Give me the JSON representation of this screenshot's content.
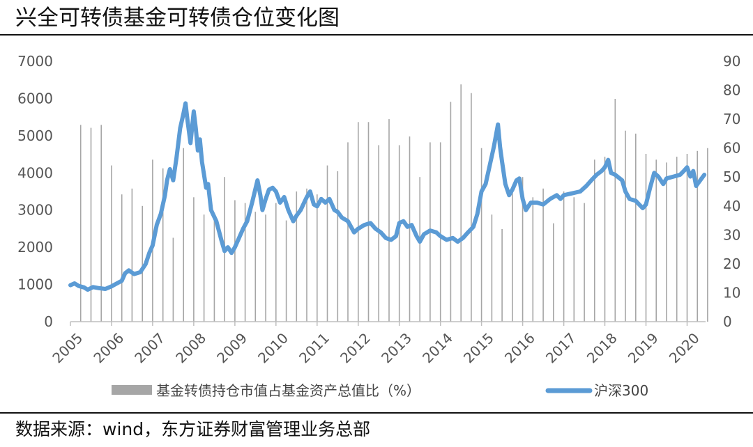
{
  "title": "兴全可转债基金可转债仓位变化图",
  "source": "数据来源：wind，东方证券财富管理业务总部",
  "colors": {
    "bars": "#a6a6a6",
    "line": "#5b9bd5",
    "axis": "#bfbfbf",
    "text": "#555555"
  },
  "chart_data": {
    "type": "bar+line",
    "title": "兴全可转债基金可转债仓位变化图",
    "x_ticks": [
      "2005",
      "2006",
      "2007",
      "2008",
      "2009",
      "2010",
      "2011",
      "2012",
      "2013",
      "2014",
      "2015",
      "2016",
      "2017",
      "2018",
      "2019",
      "2020"
    ],
    "y_left": {
      "min": 0,
      "max": 7000,
      "ticks": [
        0,
        1000,
        2000,
        3000,
        4000,
        5000,
        6000,
        7000
      ]
    },
    "y_right": {
      "min": 0,
      "max": 90,
      "ticks": [
        0,
        10,
        20,
        30,
        40,
        50,
        60,
        70,
        80,
        90
      ]
    },
    "legend": {
      "position": "bottom"
    },
    "series": [
      {
        "name": "基金转债持仓市值占基金资产总值比（%）",
        "kind": "bar",
        "axis": "right",
        "points": [
          [
            2005.25,
            68
          ],
          [
            2005.5,
            67
          ],
          [
            2005.75,
            68
          ],
          [
            2006.0,
            54
          ],
          [
            2006.25,
            44
          ],
          [
            2006.5,
            46
          ],
          [
            2006.75,
            40
          ],
          [
            2007.0,
            56
          ],
          [
            2007.25,
            53
          ],
          [
            2007.5,
            29
          ],
          [
            2007.75,
            60
          ],
          [
            2008.0,
            43
          ],
          [
            2008.25,
            37
          ],
          [
            2008.5,
            37
          ],
          [
            2008.75,
            50
          ],
          [
            2009.0,
            42
          ],
          [
            2009.25,
            41
          ],
          [
            2009.5,
            38
          ],
          [
            2009.75,
            37
          ],
          [
            2010.0,
            41
          ],
          [
            2010.25,
            35
          ],
          [
            2010.5,
            45
          ],
          [
            2010.75,
            46
          ],
          [
            2011.0,
            44
          ],
          [
            2011.25,
            54
          ],
          [
            2011.5,
            52
          ],
          [
            2011.75,
            62
          ],
          [
            2012.0,
            69
          ],
          [
            2012.25,
            69
          ],
          [
            2012.5,
            61
          ],
          [
            2012.75,
            70
          ],
          [
            2013.0,
            61
          ],
          [
            2013.25,
            64
          ],
          [
            2013.5,
            50
          ],
          [
            2013.75,
            62
          ],
          [
            2014.0,
            62
          ],
          [
            2014.25,
            76
          ],
          [
            2014.5,
            82
          ],
          [
            2014.75,
            79
          ],
          [
            2015.0,
            60
          ],
          [
            2015.25,
            37
          ],
          [
            2015.5,
            32
          ],
          [
            2015.75,
            45
          ],
          [
            2016.0,
            50
          ],
          [
            2016.25,
            43
          ],
          [
            2016.5,
            46
          ],
          [
            2016.75,
            34
          ],
          [
            2017.0,
            45
          ],
          [
            2017.25,
            43
          ],
          [
            2017.5,
            41
          ],
          [
            2017.75,
            56
          ],
          [
            2018.0,
            57
          ],
          [
            2018.25,
            77
          ],
          [
            2018.5,
            66
          ],
          [
            2018.75,
            65
          ],
          [
            2019.0,
            58
          ],
          [
            2019.25,
            56
          ],
          [
            2019.5,
            55
          ],
          [
            2019.75,
            57
          ],
          [
            2020.0,
            58
          ],
          [
            2020.25,
            59
          ],
          [
            2020.5,
            60
          ]
        ]
      },
      {
        "name": "沪深300",
        "kind": "line",
        "axis": "left",
        "points": [
          [
            2005.0,
            980
          ],
          [
            2005.1,
            1030
          ],
          [
            2005.2,
            960
          ],
          [
            2005.33,
            920
          ],
          [
            2005.42,
            860
          ],
          [
            2005.55,
            930
          ],
          [
            2005.7,
            900
          ],
          [
            2005.85,
            880
          ],
          [
            2006.0,
            950
          ],
          [
            2006.1,
            1010
          ],
          [
            2006.25,
            1100
          ],
          [
            2006.33,
            1300
          ],
          [
            2006.42,
            1380
          ],
          [
            2006.55,
            1280
          ],
          [
            2006.7,
            1330
          ],
          [
            2006.83,
            1550
          ],
          [
            2006.92,
            1850
          ],
          [
            2007.0,
            2050
          ],
          [
            2007.1,
            2600
          ],
          [
            2007.2,
            2900
          ],
          [
            2007.3,
            3400
          ],
          [
            2007.35,
            3800
          ],
          [
            2007.42,
            4100
          ],
          [
            2007.5,
            3800
          ],
          [
            2007.58,
            4400
          ],
          [
            2007.67,
            5200
          ],
          [
            2007.75,
            5600
          ],
          [
            2007.8,
            5870
          ],
          [
            2007.85,
            5400
          ],
          [
            2007.92,
            4800
          ],
          [
            2008.0,
            5650
          ],
          [
            2008.05,
            5200
          ],
          [
            2008.1,
            4600
          ],
          [
            2008.15,
            4900
          ],
          [
            2008.2,
            4300
          ],
          [
            2008.3,
            3600
          ],
          [
            2008.35,
            3700
          ],
          [
            2008.42,
            3000
          ],
          [
            2008.55,
            2700
          ],
          [
            2008.67,
            2200
          ],
          [
            2008.75,
            1900
          ],
          [
            2008.83,
            2000
          ],
          [
            2008.92,
            1850
          ],
          [
            2009.0,
            2000
          ],
          [
            2009.1,
            2250
          ],
          [
            2009.2,
            2500
          ],
          [
            2009.3,
            2700
          ],
          [
            2009.42,
            3200
          ],
          [
            2009.55,
            3800
          ],
          [
            2009.62,
            3400
          ],
          [
            2009.67,
            3000
          ],
          [
            2009.75,
            3300
          ],
          [
            2009.83,
            3550
          ],
          [
            2009.92,
            3600
          ],
          [
            2010.0,
            3500
          ],
          [
            2010.1,
            3200
          ],
          [
            2010.2,
            3350
          ],
          [
            2010.3,
            3000
          ],
          [
            2010.42,
            2700
          ],
          [
            2010.5,
            2850
          ],
          [
            2010.6,
            3000
          ],
          [
            2010.75,
            3350
          ],
          [
            2010.83,
            3500
          ],
          [
            2010.92,
            3150
          ],
          [
            2011.0,
            3100
          ],
          [
            2011.1,
            3300
          ],
          [
            2011.2,
            3200
          ],
          [
            2011.3,
            3300
          ],
          [
            2011.42,
            3000
          ],
          [
            2011.5,
            2950
          ],
          [
            2011.6,
            2800
          ],
          [
            2011.75,
            2700
          ],
          [
            2011.9,
            2400
          ],
          [
            2012.0,
            2500
          ],
          [
            2012.15,
            2600
          ],
          [
            2012.3,
            2650
          ],
          [
            2012.42,
            2500
          ],
          [
            2012.55,
            2400
          ],
          [
            2012.67,
            2250
          ],
          [
            2012.8,
            2200
          ],
          [
            2012.92,
            2300
          ],
          [
            2013.0,
            2650
          ],
          [
            2013.1,
            2700
          ],
          [
            2013.2,
            2550
          ],
          [
            2013.3,
            2600
          ],
          [
            2013.42,
            2300
          ],
          [
            2013.5,
            2150
          ],
          [
            2013.6,
            2350
          ],
          [
            2013.75,
            2450
          ],
          [
            2013.9,
            2400
          ],
          [
            2014.0,
            2300
          ],
          [
            2014.15,
            2200
          ],
          [
            2014.3,
            2250
          ],
          [
            2014.42,
            2150
          ],
          [
            2014.55,
            2250
          ],
          [
            2014.67,
            2400
          ],
          [
            2014.8,
            2550
          ],
          [
            2014.9,
            2900
          ],
          [
            2015.0,
            3500
          ],
          [
            2015.1,
            3700
          ],
          [
            2015.2,
            4200
          ],
          [
            2015.3,
            4700
          ],
          [
            2015.4,
            5300
          ],
          [
            2015.45,
            4700
          ],
          [
            2015.5,
            4300
          ],
          [
            2015.58,
            3700
          ],
          [
            2015.67,
            3400
          ],
          [
            2015.75,
            3550
          ],
          [
            2015.85,
            3800
          ],
          [
            2015.92,
            3850
          ],
          [
            2016.0,
            3300
          ],
          [
            2016.08,
            3000
          ],
          [
            2016.2,
            3200
          ],
          [
            2016.35,
            3200
          ],
          [
            2016.5,
            3150
          ],
          [
            2016.67,
            3300
          ],
          [
            2016.83,
            3400
          ],
          [
            2016.92,
            3300
          ],
          [
            2017.0,
            3400
          ],
          [
            2017.2,
            3450
          ],
          [
            2017.4,
            3500
          ],
          [
            2017.55,
            3650
          ],
          [
            2017.67,
            3800
          ],
          [
            2017.8,
            3950
          ],
          [
            2017.92,
            4050
          ],
          [
            2018.0,
            4150
          ],
          [
            2018.08,
            4350
          ],
          [
            2018.15,
            4000
          ],
          [
            2018.25,
            3950
          ],
          [
            2018.42,
            3800
          ],
          [
            2018.5,
            3500
          ],
          [
            2018.6,
            3300
          ],
          [
            2018.75,
            3250
          ],
          [
            2018.92,
            3050
          ],
          [
            2019.0,
            3150
          ],
          [
            2019.1,
            3600
          ],
          [
            2019.2,
            4000
          ],
          [
            2019.3,
            3900
          ],
          [
            2019.42,
            3700
          ],
          [
            2019.5,
            3850
          ],
          [
            2019.67,
            3900
          ],
          [
            2019.83,
            3950
          ],
          [
            2019.92,
            4050
          ],
          [
            2020.0,
            4150
          ],
          [
            2020.08,
            3900
          ],
          [
            2020.15,
            4050
          ],
          [
            2020.22,
            3650
          ],
          [
            2020.32,
            3800
          ],
          [
            2020.42,
            3950
          ]
        ]
      }
    ]
  }
}
